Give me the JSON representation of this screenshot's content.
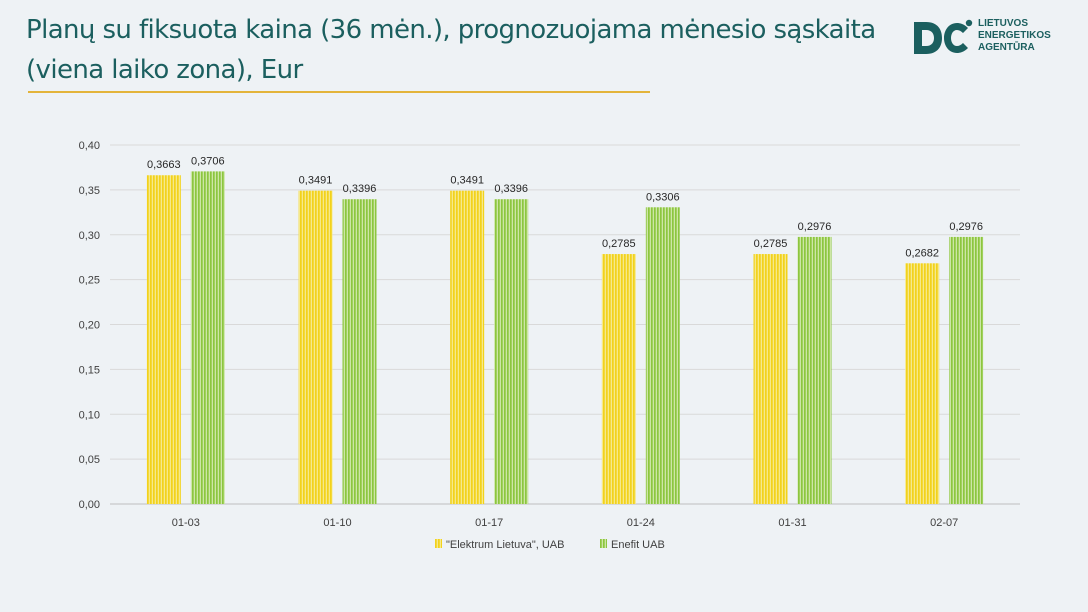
{
  "header": {
    "title": "Planų su fiksuota kaina (36 mėn.), prognozuojama mėnesio sąskaita (viena laiko zona), Eur"
  },
  "logo": {
    "line1": "LIETUVOS",
    "line2": "ENERGETIKOS",
    "line3": "AGENTŪRA",
    "color": "#1b5f5f"
  },
  "chart_data": {
    "type": "bar",
    "title": "",
    "xlabel": "",
    "ylabel": "",
    "categories": [
      "01-03",
      "01-10",
      "01-17",
      "01-24",
      "01-31",
      "02-07"
    ],
    "series": [
      {
        "name": "\"Elektrum Lietuva\", UAB",
        "color": "#f2d21b",
        "stripe": "#f6e98a",
        "values": [
          0.3663,
          0.3491,
          0.3491,
          0.2785,
          0.2785,
          0.2682
        ],
        "labels": [
          "0,3663",
          "0,3491",
          "0,3491",
          "0,2785",
          "0,2785",
          "0,2682"
        ]
      },
      {
        "name": "Enefit UAB",
        "color": "#8cc63f",
        "stripe": "#cde6a6",
        "values": [
          0.3706,
          0.3396,
          0.3396,
          0.3306,
          0.2976,
          0.2976
        ],
        "labels": [
          "0,3706",
          "0,3396",
          "0,3396",
          "0,3306",
          "0,2976",
          "0,2976"
        ]
      }
    ],
    "ylim": [
      0,
      0.4
    ],
    "yticks": [
      "0,00",
      "0,05",
      "0,10",
      "0,15",
      "0,20",
      "0,25",
      "0,30",
      "0,35",
      "0,40"
    ],
    "grid": true,
    "legend": "bottom-center"
  }
}
